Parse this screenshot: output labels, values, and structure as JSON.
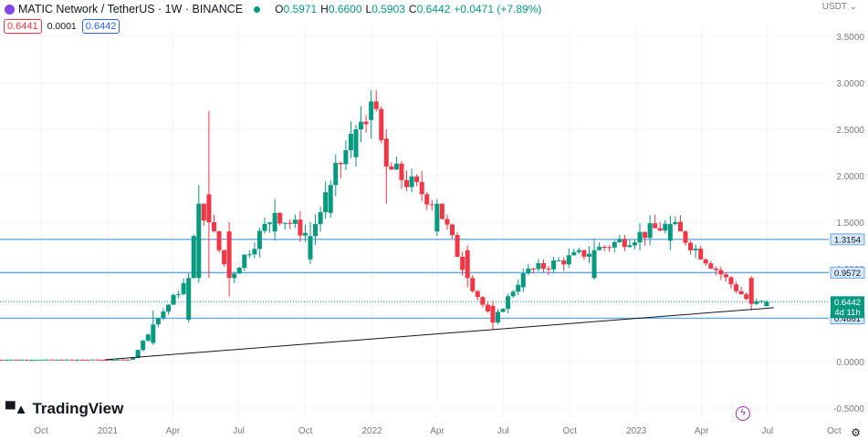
{
  "header": {
    "symbol": "MATIC Network / TetherUS · 1W · BINANCE",
    "open_label": "O",
    "open_value": "0.5971",
    "high_label": "H",
    "high_value": "0.6600",
    "low_label": "L",
    "low_value": "0.5903",
    "close_label": "C",
    "close_value": "0.6442",
    "change": "+0.0471 (+7.89%)",
    "sell_price": "0.6441",
    "spread": "0.0001",
    "buy_price": "0.6442",
    "currency": "USDT"
  },
  "branding": {
    "name": "TradingView",
    "logo_text": "17"
  },
  "colors": {
    "up": "#089981",
    "down": "#f23645",
    "level_line": "#6ba8e0",
    "trend_line": "#131722",
    "axis_text": "#787b86"
  },
  "chart_data": {
    "type": "candlestick",
    "interval": "1W",
    "y_ticks": [
      "3.5000",
      "3.0000",
      "2.5000",
      "2.0000",
      "1.5000",
      "1.0000",
      "0.5000",
      "0.0000",
      "-0.5000"
    ],
    "ylim": [
      -0.5,
      3.5
    ],
    "x_ticks": [
      "Oct",
      "2021",
      "Apr",
      "Jul",
      "Oct",
      "2022",
      "Apr",
      "Jul",
      "Oct",
      "2023",
      "Apr",
      "Jul",
      "Oct"
    ],
    "x_tick_dates": [
      "2020-10-01",
      "2021-01-01",
      "2021-04-01",
      "2021-07-01",
      "2021-10-01",
      "2022-01-01",
      "2022-04-01",
      "2022-07-01",
      "2022-10-01",
      "2023-01-01",
      "2023-04-01",
      "2023-07-01",
      "2023-10-01"
    ],
    "horizontal_levels": [
      {
        "value": 1.3154,
        "label": "1.3154"
      },
      {
        "value": 0.9572,
        "label": "0.9572"
      },
      {
        "value": 0.4661,
        "label": "0.4661"
      }
    ],
    "last_price": {
      "value": 0.6442,
      "label": "0.6442",
      "countdown": "4d 11h"
    },
    "trend_line": {
      "from_date": "2020-12-28",
      "from_value": 0.02,
      "to_date": "2023-07-10",
      "to_value": 0.58
    },
    "key_candles": [
      {
        "date": "2021-02-01",
        "open": 0.02,
        "high": 0.05,
        "low": 0.02,
        "close": 0.04
      },
      {
        "date": "2021-03-01",
        "open": 0.2,
        "high": 0.55,
        "low": 0.18,
        "close": 0.4
      },
      {
        "date": "2021-04-19",
        "open": 0.45,
        "high": 0.95,
        "low": 0.42,
        "close": 0.9
      },
      {
        "date": "2021-05-03",
        "open": 0.9,
        "high": 1.9,
        "low": 0.85,
        "close": 1.7
      },
      {
        "date": "2021-05-17",
        "open": 1.8,
        "high": 2.7,
        "low": 0.9,
        "close": 1.5
      },
      {
        "date": "2021-06-14",
        "open": 1.4,
        "high": 1.5,
        "low": 0.7,
        "close": 0.9
      },
      {
        "date": "2021-08-16",
        "open": 1.4,
        "high": 1.75,
        "low": 1.3,
        "close": 1.6
      },
      {
        "date": "2021-10-04",
        "open": 1.1,
        "high": 1.5,
        "low": 1.05,
        "close": 1.35
      },
      {
        "date": "2021-11-01",
        "open": 1.6,
        "high": 1.95,
        "low": 1.55,
        "close": 1.9
      },
      {
        "date": "2021-12-06",
        "open": 2.2,
        "high": 2.55,
        "low": 2.1,
        "close": 2.5
      },
      {
        "date": "2021-12-27",
        "open": 2.6,
        "high": 2.92,
        "low": 2.4,
        "close": 2.8
      },
      {
        "date": "2022-01-17",
        "open": 2.4,
        "high": 2.5,
        "low": 1.7,
        "close": 2.1
      },
      {
        "date": "2022-03-28",
        "open": 1.4,
        "high": 1.75,
        "low": 1.35,
        "close": 1.7
      },
      {
        "date": "2022-05-09",
        "open": 1.2,
        "high": 1.25,
        "low": 0.8,
        "close": 0.9
      },
      {
        "date": "2022-06-13",
        "open": 0.6,
        "high": 0.65,
        "low": 0.34,
        "close": 0.42
      },
      {
        "date": "2022-07-25",
        "open": 0.8,
        "high": 1.0,
        "low": 0.75,
        "close": 0.95
      },
      {
        "date": "2022-10-31",
        "open": 0.9,
        "high": 1.32,
        "low": 0.88,
        "close": 1.2
      },
      {
        "date": "2023-02-13",
        "open": 1.3,
        "high": 1.57,
        "low": 1.2,
        "close": 1.48
      },
      {
        "date": "2023-06-05",
        "open": 0.9,
        "high": 0.92,
        "low": 0.55,
        "close": 0.62
      },
      {
        "date": "2023-06-26",
        "open": 0.5971,
        "high": 0.66,
        "low": 0.5903,
        "close": 0.6442
      }
    ]
  }
}
